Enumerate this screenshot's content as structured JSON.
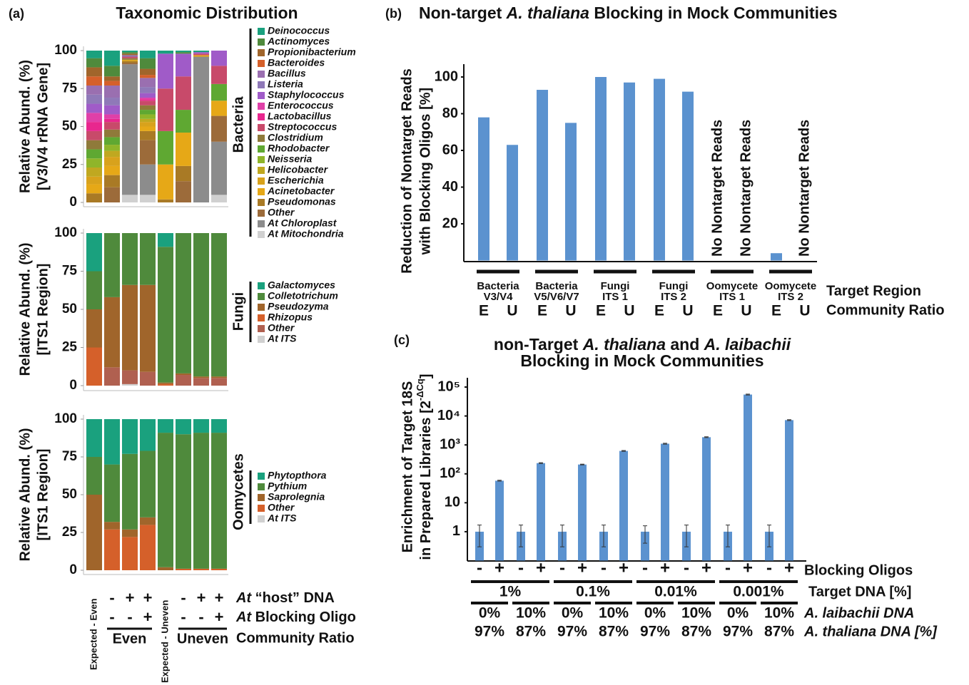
{
  "chart_data": [
    {
      "type": "stacked_bar",
      "panel_label": "(a)",
      "title": "Taxonomic Distribution",
      "ylabel": [
        "Relative Abund. (%)",
        "[V3/V4 rRNA Gene]"
      ],
      "group_label": "Bacteria",
      "ylim": [
        0,
        100
      ],
      "yticks": [
        0,
        25,
        50,
        75,
        100
      ],
      "series": [
        {
          "name": "Deinococcus",
          "color": "#1aa17e",
          "values": [
            5,
            10,
            1,
            5,
            2,
            1,
            1,
            0
          ]
        },
        {
          "name": "Actinomyces",
          "color": "#4f8a3c",
          "values": [
            6,
            7,
            1,
            7,
            0,
            1,
            0,
            0
          ]
        },
        {
          "name": "Propionibacterium",
          "color": "#a0652b",
          "values": [
            6,
            3,
            1,
            4,
            0,
            0,
            0,
            0
          ]
        },
        {
          "name": "Bacteroides",
          "color": "#d5602a",
          "values": [
            6,
            3,
            0,
            2,
            0,
            0,
            0,
            0
          ]
        },
        {
          "name": "Bacillus",
          "color": "#9a6fb0",
          "values": [
            6,
            8,
            0,
            6,
            0,
            0,
            0,
            0
          ]
        },
        {
          "name": "Listeria",
          "color": "#8f79b8",
          "values": [
            6,
            5,
            1,
            4,
            0,
            0,
            0,
            0
          ]
        },
        {
          "name": "Staphylococcus",
          "color": "#a05bc8",
          "values": [
            6,
            6,
            0,
            3,
            23,
            15,
            1,
            10
          ]
        },
        {
          "name": "Enterococcus",
          "color": "#e040a8",
          "values": [
            6,
            3,
            0,
            1,
            0,
            0,
            0,
            0
          ]
        },
        {
          "name": "Lactobacillus",
          "color": "#e8278e",
          "values": [
            6,
            2,
            0,
            1,
            0,
            0,
            0,
            0
          ]
        },
        {
          "name": "Streptococcus",
          "color": "#c84a6a",
          "values": [
            6,
            5,
            1,
            3,
            28,
            22,
            1,
            12
          ]
        },
        {
          "name": "Clostridium",
          "color": "#8f7a3a",
          "values": [
            6,
            5,
            1,
            3,
            0,
            0,
            0,
            0
          ]
        },
        {
          "name": "Rhodobacter",
          "color": "#5fa832",
          "values": [
            6,
            5,
            0,
            3,
            22,
            15,
            0,
            11
          ]
        },
        {
          "name": "Neisseria",
          "color": "#8fb52a",
          "values": [
            6,
            4,
            0,
            3,
            0,
            0,
            0,
            0
          ]
        },
        {
          "name": "Helicobacter",
          "color": "#c0a820",
          "values": [
            6,
            4,
            0,
            2,
            0,
            0,
            0,
            0
          ]
        },
        {
          "name": "Escherichia",
          "color": "#d8a21c",
          "values": [
            5,
            6,
            1,
            3,
            0,
            0,
            0,
            0
          ]
        },
        {
          "name": "Acinetobacter",
          "color": "#e6a817",
          "values": [
            6,
            6,
            0,
            3,
            23,
            22,
            1,
            10
          ]
        },
        {
          "name": "Pseudomonas",
          "color": "#a97a25",
          "values": [
            6,
            8,
            1,
            6,
            2,
            10,
            0,
            0
          ]
        },
        {
          "name": "Other",
          "color": "#9c6b3a",
          "values": [
            0,
            10,
            1,
            16,
            0,
            14,
            0,
            17
          ]
        },
        {
          "name": "At Chloroplast",
          "color": "#8c8c8c",
          "values": [
            0,
            0,
            86,
            20,
            0,
            0,
            96,
            35
          ]
        },
        {
          "name": "At Mitochondria",
          "color": "#d0d0d0",
          "values": [
            0,
            0,
            5,
            5,
            0,
            0,
            0,
            5
          ]
        }
      ]
    },
    {
      "type": "stacked_bar",
      "ylabel": [
        "Relative Abund. (%)",
        "[ITS1 Region]"
      ],
      "group_label": "Fungi",
      "ylim": [
        0,
        100
      ],
      "yticks": [
        0,
        25,
        50,
        75,
        100
      ],
      "series": [
        {
          "name": "Galactomyces",
          "color": "#1aa17e",
          "values": [
            25,
            0,
            0,
            0,
            9,
            0,
            0,
            0
          ]
        },
        {
          "name": "Colletotrichum",
          "color": "#4f8a3c",
          "values": [
            25,
            42,
            34,
            34,
            89,
            92,
            94,
            94
          ]
        },
        {
          "name": "Pseudozyma",
          "color": "#a0652b",
          "values": [
            25,
            46,
            56,
            57,
            1,
            1,
            1,
            1
          ]
        },
        {
          "name": "Rhizopus",
          "color": "#d5602a",
          "values": [
            25,
            0,
            0,
            0,
            1,
            0,
            0,
            0
          ]
        },
        {
          "name": "Other",
          "color": "#b06050",
          "values": [
            0,
            12,
            9,
            9,
            0,
            7,
            5,
            5
          ]
        },
        {
          "name": "At ITS",
          "color": "#d0d0d0",
          "values": [
            0,
            0,
            1,
            0,
            0,
            0,
            0,
            0
          ]
        }
      ]
    },
    {
      "type": "stacked_bar",
      "ylabel": [
        "Relative Abund. (%)",
        "[ITS1 Region]"
      ],
      "group_label": "Oomycetes",
      "ylim": [
        0,
        100
      ],
      "yticks": [
        0,
        25,
        50,
        75,
        100
      ],
      "categories": [
        "Expected - Even",
        null,
        null,
        null,
        "Expected - Uneven",
        null,
        null,
        null
      ],
      "series": [
        {
          "name": "Phytopthora",
          "color": "#1aa17e",
          "values": [
            25,
            30,
            23,
            21,
            9,
            10,
            9,
            9
          ]
        },
        {
          "name": "Pythium",
          "color": "#4f8a3c",
          "values": [
            25,
            38,
            50,
            44,
            89,
            89,
            90,
            90
          ]
        },
        {
          "name": "Saprolegnia",
          "color": "#a0652b",
          "values": [
            50,
            5,
            5,
            5,
            2,
            0,
            0,
            0
          ]
        },
        {
          "name": "Other",
          "color": "#d5602a",
          "values": [
            0,
            27,
            22,
            30,
            0,
            1,
            1,
            1
          ]
        },
        {
          "name": "At ITS",
          "color": "#d0d0d0",
          "values": [
            0,
            0,
            0,
            0,
            0,
            0,
            0,
            0
          ]
        }
      ],
      "x_rows": [
        {
          "label": [
            "At",
            " “host” DNA"
          ],
          "values": [
            "-",
            "+",
            "+",
            "-",
            "+",
            "+"
          ]
        },
        {
          "label": [
            "At",
            " Blocking Oligo"
          ],
          "values": [
            "-",
            "-",
            "+",
            "-",
            "-",
            "+"
          ]
        }
      ],
      "x_groups": [
        "Even",
        "Uneven"
      ],
      "x_groups_label": "Community Ratio"
    },
    {
      "type": "bar",
      "panel_label": "(b)",
      "title": [
        "Non-target ",
        "A. thaliana",
        " Blocking in Mock Communities"
      ],
      "ylabel": [
        "Reduction of Nontarget Reads",
        "with Blocking Oligos [%]"
      ],
      "ylim": [
        0,
        100
      ],
      "yticks": [
        20,
        40,
        60,
        80,
        100
      ],
      "color": "#5b92cf",
      "categories": [
        "E",
        "U",
        "E",
        "U",
        "E",
        "U",
        "E",
        "U",
        "E",
        "U",
        "E",
        "U"
      ],
      "values": [
        78,
        63,
        93,
        75,
        100,
        97,
        99,
        92,
        null,
        null,
        4,
        null
      ],
      "value_labels": [
        null,
        null,
        null,
        null,
        null,
        null,
        null,
        null,
        "No Nontarget Reads",
        "No Nontarget Reads",
        null,
        "No Nontarget Reads"
      ],
      "groups": [
        [
          "Bacteria",
          "V3/V4"
        ],
        [
          "Bacteria",
          "V5/V6/V7"
        ],
        [
          "Fungi",
          "ITS 1"
        ],
        [
          "Fungi",
          "ITS 2"
        ],
        [
          "Oomycete",
          "ITS 1"
        ],
        [
          "Oomycete",
          "ITS 2"
        ]
      ],
      "groups_label": "Target Region",
      "categories_label": "Community Ratio"
    },
    {
      "type": "bar",
      "panel_label": "(c)",
      "log": true,
      "color": "#5b92cf",
      "title": [
        [
          "non-Target ",
          "A. thaliana",
          " and ",
          "A. laibachii"
        ],
        [
          "Blocking in Mock Communities"
        ]
      ],
      "ylabel": [
        "Enrichment of Target 18S",
        "in Prepared Libraries [2",
        "-ΔCq",
        "]"
      ],
      "ylim": [
        0.1,
        100000
      ],
      "yticks": [
        1,
        10,
        {
          "value": 100,
          "label": "10²"
        },
        {
          "value": 1000,
          "label": "10³"
        },
        {
          "value": 10000,
          "label": "10⁴"
        },
        {
          "value": 100000,
          "label": "10⁵"
        }
      ],
      "categories": [
        "-",
        "+",
        "-",
        "+",
        "-",
        "+",
        "-",
        "+",
        "-",
        "+",
        "-",
        "+",
        "-",
        "+",
        "-",
        "+"
      ],
      "values": [
        1,
        58,
        1,
        235,
        1,
        210,
        1,
        620,
        1,
        1100,
        1,
        1850,
        1,
        55000,
        1,
        7200
      ],
      "errors": [
        0.7,
        2,
        0.7,
        8,
        0.7,
        6,
        0.7,
        20,
        0.6,
        40,
        0.7,
        60,
        0.7,
        2000,
        0.7,
        250
      ],
      "categories_label": "Blocking Oligos",
      "rows": [
        {
          "label": "Target DNA [%]",
          "values": [
            "1%",
            "0.1%",
            "0.01%",
            "0.001%"
          ]
        },
        {
          "label": "A. laibachii DNA",
          "values": [
            "0%",
            "10%",
            "0%",
            "10%",
            "0%",
            "10%",
            "0%",
            "10%"
          ]
        },
        {
          "label": "A. thaliana DNA [%]",
          "values": [
            "97%",
            "87%",
            "97%",
            "87%",
            "97%",
            "87%",
            "97%",
            "87%"
          ]
        }
      ]
    }
  ]
}
